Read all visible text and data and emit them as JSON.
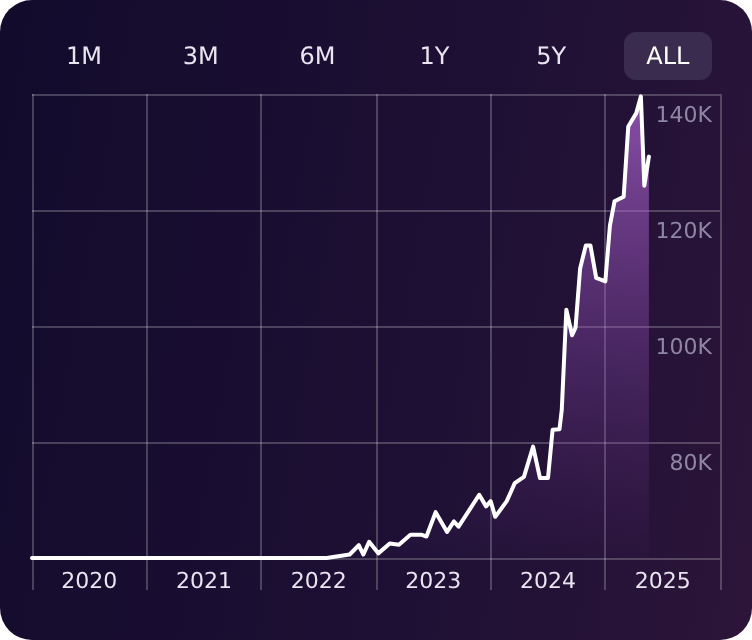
{
  "chart_data": {
    "type": "area",
    "annotations": [
      "1M",
      "3M",
      "6M",
      "1Y",
      "5Y",
      "ALL"
    ],
    "x": [
      2020,
      2022.57,
      2022.77,
      2022.85,
      2022.89,
      2022.94,
      2023.02,
      2023.12,
      2023.2,
      2023.3,
      2023.4,
      2023.44,
      2023.52,
      2023.62,
      2023.68,
      2023.72,
      2023.9,
      2023.96,
      2024.0,
      2024.04,
      2024.14,
      2024.21,
      2024.29,
      2024.37,
      2024.43,
      2024.5,
      2024.54,
      2024.6,
      2024.62,
      2024.66,
      2024.71,
      2024.74,
      2024.78,
      2024.83,
      2024.87,
      2024.92,
      2025.0,
      2025.04,
      2025.08,
      2025.16,
      2025.2,
      2025.27,
      2025.31,
      2025.34,
      2025.38
    ],
    "series": [
      {
        "color": "#ffffff",
        "values": [
          60,
          60,
          60.6,
          62.2,
          60.6,
          62.8,
          60.8,
          62.5,
          62.3,
          64,
          64,
          63.7,
          67.9,
          64.5,
          66.3,
          65.4,
          70.9,
          68.9,
          69.8,
          67.1,
          69.8,
          72.9,
          74,
          79.2,
          73.8,
          73.8,
          82.1,
          82.2,
          85.5,
          102.8,
          98.4,
          99.7,
          109.9,
          113.9,
          113.9,
          108.3,
          107.7,
          117.3,
          121.5,
          122.3,
          134.4,
          136.7,
          139.6,
          124.2,
          129.2
        ]
      }
    ],
    "xlim": [
      2020,
      2026
    ],
    "xticks": [
      {
        "value": 2020,
        "label": null
      },
      {
        "value": 2020.5,
        "label": "2020"
      },
      {
        "value": 2021,
        "label": null
      },
      {
        "value": 2021.5,
        "label": "2021"
      },
      {
        "value": 2022,
        "label": null
      },
      {
        "value": 2022.5,
        "label": "2022"
      },
      {
        "value": 2023,
        "label": null
      },
      {
        "value": 2023.5,
        "label": "2023"
      },
      {
        "value": 2024,
        "label": null
      },
      {
        "value": 2024.5,
        "label": "2024"
      },
      {
        "value": 2025,
        "label": null
      },
      {
        "value": 2025.5,
        "label": "2025"
      },
      {
        "value": 2026,
        "label": null
      }
    ],
    "ylim": [
      60,
      140
    ],
    "yticks": [
      {
        "value": 60,
        "label": null
      },
      {
        "value": 80,
        "label": "80K"
      },
      {
        "value": 100,
        "label": "100K"
      },
      {
        "value": 120,
        "label": "120K"
      },
      {
        "value": 140,
        "label": "140K"
      }
    ],
    "grid": true,
    "marker": "none",
    "line_style": "solid"
  }
}
